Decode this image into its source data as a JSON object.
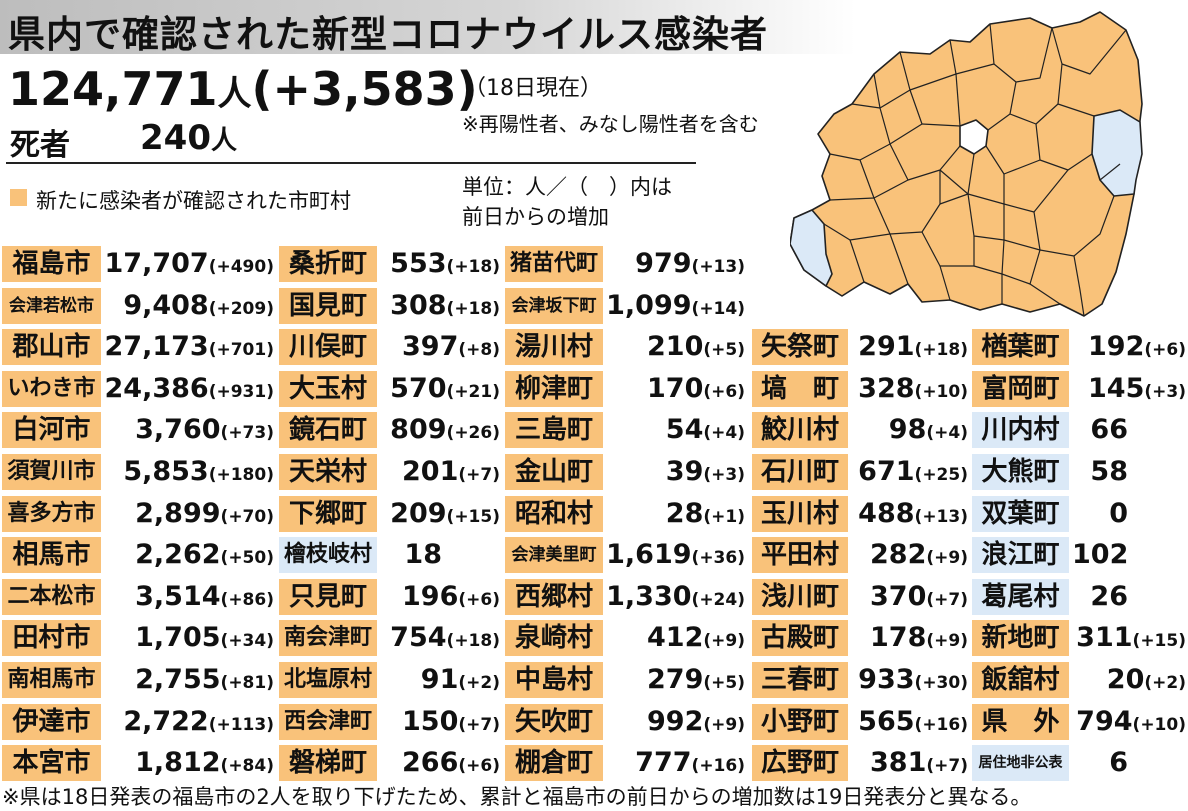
{
  "title": "県内で確認された新型コロナウイルス感染者",
  "summary": {
    "total": "124,771",
    "total_unit": "人",
    "total_increase": "(+3,583)",
    "as_of": "（18日現在）",
    "note": "※再陽性者、みなし陽性者を含む",
    "deaths_label": "死者",
    "deaths": "240",
    "deaths_unit": "人"
  },
  "legend": {
    "label": "新たに感染者が確認された市町村",
    "color": "#f9c27a"
  },
  "unit_note": {
    "line1": "単位：人／（　）内は",
    "line2": "前日からの増加"
  },
  "colors": {
    "new_cases": "#f9c27a",
    "no_new_cases": "#dbe9f7",
    "map_stroke": "#222222"
  },
  "columns": [
    [
      {
        "name": "福島市",
        "count": "17,707",
        "delta": "(+490)",
        "new": true
      },
      {
        "name": "会津若松市",
        "count": "9,408",
        "delta": "(+209)",
        "new": true
      },
      {
        "name": "郡山市",
        "count": "27,173",
        "delta": "(+701)",
        "new": true
      },
      {
        "name": "いわき市",
        "count": "24,386",
        "delta": "(+931)",
        "new": true
      },
      {
        "name": "白河市",
        "count": "3,760",
        "delta": "(+73)",
        "new": true
      },
      {
        "name": "須賀川市",
        "count": "5,853",
        "delta": "(+180)",
        "new": true
      },
      {
        "name": "喜多方市",
        "count": "2,899",
        "delta": "(+70)",
        "new": true
      },
      {
        "name": "相馬市",
        "count": "2,262",
        "delta": "(+50)",
        "new": true
      },
      {
        "name": "二本松市",
        "count": "3,514",
        "delta": "(+86)",
        "new": true
      },
      {
        "name": "田村市",
        "count": "1,705",
        "delta": "(+34)",
        "new": true
      },
      {
        "name": "南相馬市",
        "count": "2,755",
        "delta": "(+81)",
        "new": true
      },
      {
        "name": "伊達市",
        "count": "2,722",
        "delta": "(+113)",
        "new": true
      },
      {
        "name": "本宮市",
        "count": "1,812",
        "delta": "(+84)",
        "new": true
      }
    ],
    [
      {
        "name": "桑折町",
        "count": "553",
        "delta": "(+18)",
        "new": true
      },
      {
        "name": "国見町",
        "count": "308",
        "delta": "(+18)",
        "new": true
      },
      {
        "name": "川俣町",
        "count": "397",
        "delta": "(+8)",
        "new": true
      },
      {
        "name": "大玉村",
        "count": "570",
        "delta": "(+21)",
        "new": true
      },
      {
        "name": "鏡石町",
        "count": "809",
        "delta": "(+26)",
        "new": true
      },
      {
        "name": "天栄村",
        "count": "201",
        "delta": "(+7)",
        "new": true
      },
      {
        "name": "下郷町",
        "count": "209",
        "delta": "(+15)",
        "new": true
      },
      {
        "name": "檜枝岐村",
        "count": "18",
        "delta": "",
        "new": false
      },
      {
        "name": "只見町",
        "count": "196",
        "delta": "(+6)",
        "new": true
      },
      {
        "name": "南会津町",
        "count": "754",
        "delta": "(+18)",
        "new": true
      },
      {
        "name": "北塩原村",
        "count": "91",
        "delta": "(+2)",
        "new": true
      },
      {
        "name": "西会津町",
        "count": "150",
        "delta": "(+7)",
        "new": true
      },
      {
        "name": "磐梯町",
        "count": "266",
        "delta": "(+6)",
        "new": true
      }
    ],
    [
      {
        "name": "猪苗代町",
        "count": "979",
        "delta": "(+13)",
        "new": true
      },
      {
        "name": "会津坂下町",
        "count": "1,099",
        "delta": "(+14)",
        "new": true
      },
      {
        "name": "湯川村",
        "count": "210",
        "delta": "(+5)",
        "new": true
      },
      {
        "name": "柳津町",
        "count": "170",
        "delta": "(+6)",
        "new": true
      },
      {
        "name": "三島町",
        "count": "54",
        "delta": "(+4)",
        "new": true
      },
      {
        "name": "金山町",
        "count": "39",
        "delta": "(+3)",
        "new": true
      },
      {
        "name": "昭和村",
        "count": "28",
        "delta": "(+1)",
        "new": true
      },
      {
        "name": "会津美里町",
        "count": "1,619",
        "delta": "(+36)",
        "new": true
      },
      {
        "name": "西郷村",
        "count": "1,330",
        "delta": "(+24)",
        "new": true
      },
      {
        "name": "泉崎村",
        "count": "412",
        "delta": "(+9)",
        "new": true
      },
      {
        "name": "中島村",
        "count": "279",
        "delta": "(+5)",
        "new": true
      },
      {
        "name": "矢吹町",
        "count": "992",
        "delta": "(+9)",
        "new": true
      },
      {
        "name": "棚倉町",
        "count": "777",
        "delta": "(+16)",
        "new": true
      }
    ],
    [
      {
        "name": "矢祭町",
        "count": "291",
        "delta": "(+18)",
        "new": true
      },
      {
        "name": "塙　町",
        "count": "328",
        "delta": "(+10)",
        "new": true
      },
      {
        "name": "鮫川村",
        "count": "98",
        "delta": "(+4)",
        "new": true
      },
      {
        "name": "石川町",
        "count": "671",
        "delta": "(+25)",
        "new": true
      },
      {
        "name": "玉川村",
        "count": "488",
        "delta": "(+13)",
        "new": true
      },
      {
        "name": "平田村",
        "count": "282",
        "delta": "(+9)",
        "new": true
      },
      {
        "name": "浅川町",
        "count": "370",
        "delta": "(+7)",
        "new": true
      },
      {
        "name": "古殿町",
        "count": "178",
        "delta": "(+9)",
        "new": true
      },
      {
        "name": "三春町",
        "count": "933",
        "delta": "(+30)",
        "new": true
      },
      {
        "name": "小野町",
        "count": "565",
        "delta": "(+16)",
        "new": true
      },
      {
        "name": "広野町",
        "count": "381",
        "delta": "(+7)",
        "new": true
      }
    ],
    [
      {
        "name": "楢葉町",
        "count": "192",
        "delta": "(+6)",
        "new": true
      },
      {
        "name": "富岡町",
        "count": "145",
        "delta": "(+3)",
        "new": true
      },
      {
        "name": "川内村",
        "count": "66",
        "delta": "",
        "new": false
      },
      {
        "name": "大熊町",
        "count": "58",
        "delta": "",
        "new": false
      },
      {
        "name": "双葉町",
        "count": "0",
        "delta": "",
        "new": false
      },
      {
        "name": "浪江町",
        "count": "102",
        "delta": "",
        "new": false
      },
      {
        "name": "葛尾村",
        "count": "26",
        "delta": "",
        "new": false
      },
      {
        "name": "新地町",
        "count": "311",
        "delta": "(+15)",
        "new": true
      },
      {
        "name": "飯舘村",
        "count": "20",
        "delta": "(+2)",
        "new": true
      },
      {
        "name": "県　外",
        "count": "794",
        "delta": "(+10)",
        "new": true
      },
      {
        "name": "居住地非公表",
        "count": "6",
        "delta": "",
        "new": false
      }
    ]
  ],
  "footer": "※県は18日発表の福島市の2人を取り下げたため、累計と福島市の前日からの増加数は19日発表分と異なる。"
}
